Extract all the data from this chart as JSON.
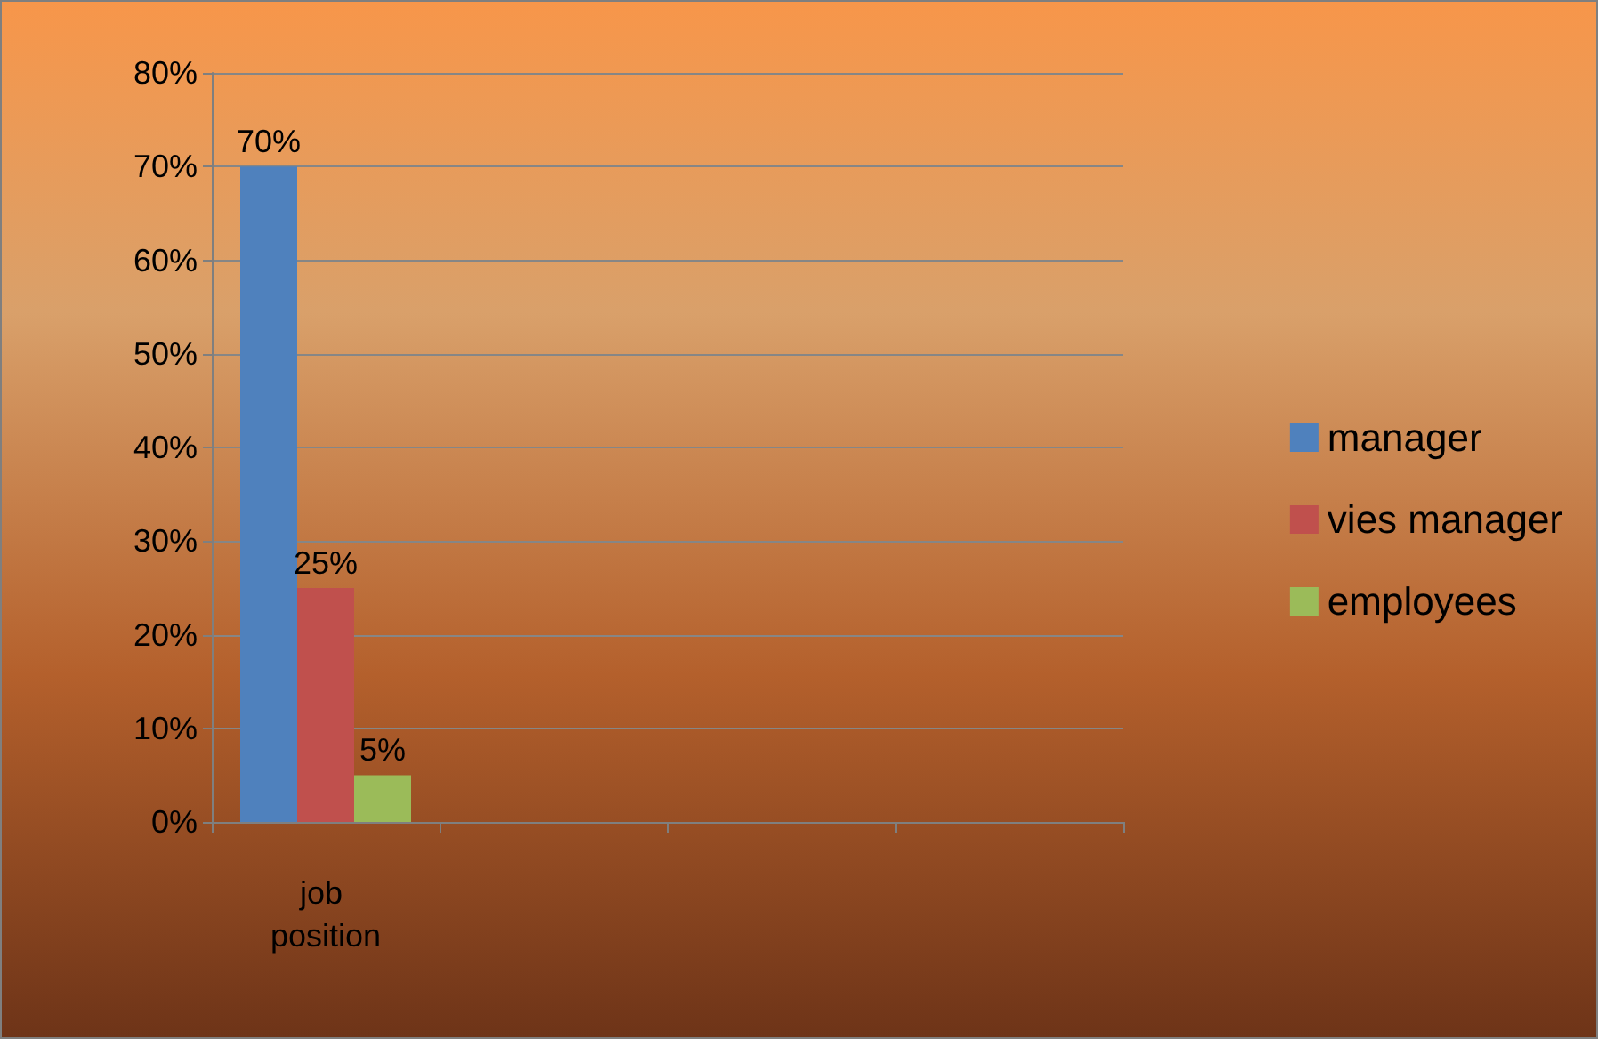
{
  "chart_data": {
    "type": "bar",
    "categories": [
      "job position",
      null,
      null,
      null
    ],
    "series": [
      {
        "name": "manager",
        "color": "#4f81bd",
        "values": [
          70,
          null,
          null,
          null
        ],
        "value_labels": [
          "70%",
          null,
          null,
          null
        ]
      },
      {
        "name": "vies manager",
        "color": "#c0504d",
        "values": [
          25,
          null,
          null,
          null
        ],
        "value_labels": [
          "25%",
          null,
          null,
          null
        ]
      },
      {
        "name": "employees",
        "color": "#9bbb59",
        "values": [
          5,
          null,
          null,
          null
        ],
        "value_labels": [
          "5%",
          null,
          null,
          null
        ]
      }
    ],
    "ylim": [
      0,
      80
    ],
    "yticks": [
      {
        "value": 0,
        "label": "0%"
      },
      {
        "value": 10,
        "label": "10%"
      },
      {
        "value": 20,
        "label": "20%"
      },
      {
        "value": 30,
        "label": "30%"
      },
      {
        "value": 40,
        "label": "40%"
      },
      {
        "value": 50,
        "label": "50%"
      },
      {
        "value": 60,
        "label": "60%"
      },
      {
        "value": 70,
        "label": "70%"
      },
      {
        "value": 80,
        "label": "80%"
      }
    ],
    "grid": "y",
    "legend": "right"
  }
}
